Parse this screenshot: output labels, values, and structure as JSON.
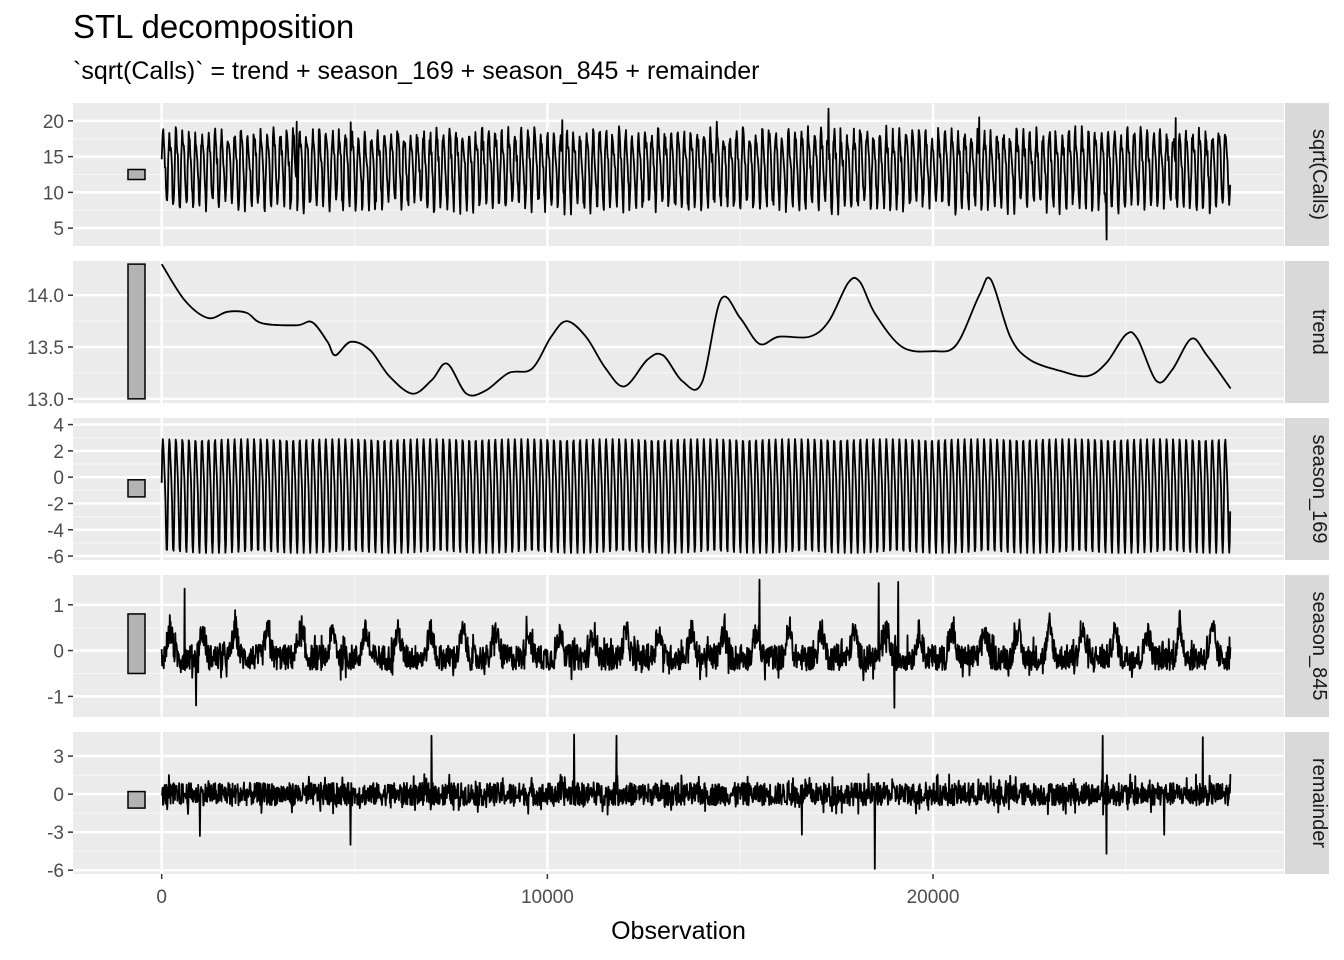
{
  "chart_data": {
    "type": "line",
    "title": "STL decomposition",
    "subtitle": "`sqrt(Calls)` = trend + season_169 + season_845 + remainder",
    "xlabel": "Observation",
    "xlim": [
      -2300,
      29100
    ],
    "x_range": [
      0,
      27716
    ],
    "x_ticks": [
      0,
      10000,
      20000
    ],
    "x_tick_labels": [
      "0",
      "10000",
      "20000"
    ],
    "x_minor_ticks": [
      5000,
      15000,
      25000
    ],
    "grid": true,
    "panels": [
      {
        "name": "sqrt(Calls)",
        "ylim": [
          2.5,
          22.5
        ],
        "y_ticks": [
          5,
          10,
          15,
          20
        ],
        "y_tick_labels": [
          "5",
          "10",
          "15",
          "20"
        ],
        "scale_bar": [
          11.8,
          13.2
        ],
        "kind": "periodic",
        "series": {
          "period": 169,
          "center": 13.6,
          "amplitude": 5.6,
          "noise": 1.2,
          "spikes": [
            {
              "x": 3500,
              "y": 19.9
            },
            {
              "x": 4900,
              "y": 19.8
            },
            {
              "x": 10400,
              "y": 20.1
            },
            {
              "x": 14400,
              "y": 19.9
            },
            {
              "x": 17300,
              "y": 21.7
            },
            {
              "x": 21200,
              "y": 20.5
            },
            {
              "x": 24500,
              "y": 3.4
            },
            {
              "x": 26300,
              "y": 20.4
            }
          ]
        }
      },
      {
        "name": "trend",
        "ylim": [
          12.96,
          14.33
        ],
        "y_ticks": [
          13.0,
          13.5,
          14.0
        ],
        "y_tick_labels": [
          "13.0",
          "13.5",
          "14.0"
        ],
        "scale_bar": [
          13.0,
          14.3
        ],
        "kind": "smooth",
        "series": {
          "x": [
            0,
            600,
            1200,
            1700,
            2200,
            2600,
            3500,
            3900,
            4300,
            4500,
            4900,
            5400,
            5900,
            6500,
            7000,
            7400,
            7900,
            8400,
            9000,
            9600,
            10100,
            10500,
            11000,
            11500,
            12000,
            12600,
            13000,
            13500,
            14000,
            14500,
            15000,
            15500,
            16000,
            16800,
            17300,
            17800,
            18100,
            18500,
            19200,
            20000,
            20600,
            21200,
            21500,
            22000,
            22500,
            23300,
            24000,
            24500,
            25000,
            25300,
            25800,
            26200,
            26700,
            27100,
            27716
          ],
          "y": [
            14.3,
            13.95,
            13.78,
            13.84,
            13.83,
            13.73,
            13.71,
            13.74,
            13.55,
            13.42,
            13.55,
            13.47,
            13.22,
            13.05,
            13.18,
            13.34,
            13.05,
            13.08,
            13.25,
            13.29,
            13.6,
            13.75,
            13.6,
            13.3,
            13.12,
            13.38,
            13.42,
            13.17,
            13.15,
            13.96,
            13.78,
            13.53,
            13.6,
            13.6,
            13.75,
            14.12,
            14.13,
            13.82,
            13.5,
            13.46,
            13.52,
            14.0,
            14.15,
            13.6,
            13.38,
            13.27,
            13.22,
            13.35,
            13.62,
            13.58,
            13.17,
            13.28,
            13.58,
            13.42,
            13.1
          ]
        }
      },
      {
        "name": "season_169",
        "ylim": [
          -6.3,
          4.5
        ],
        "y_ticks": [
          -6,
          -4,
          -2,
          0,
          2,
          4
        ],
        "y_tick_labels": [
          "-6",
          "-4",
          "-2",
          "0",
          "2",
          "4"
        ],
        "scale_bar": [
          -1.5,
          -0.2
        ],
        "kind": "periodic",
        "series": {
          "period": 169,
          "center": -1.0,
          "amplitude": 4.8,
          "noise": 0.0,
          "spikes": []
        }
      },
      {
        "name": "season_845",
        "ylim": [
          -1.45,
          1.65
        ],
        "y_ticks": [
          -1,
          0,
          1
        ],
        "y_tick_labels": [
          "-1",
          "0",
          "1"
        ],
        "scale_bar": [
          -0.5,
          0.8
        ],
        "kind": "noise",
        "series": {
          "period": 845,
          "center": 0.0,
          "amplitude": 0.55,
          "noise": 0.28,
          "spikes": [
            {
              "x": 600,
              "y": 1.35
            },
            {
              "x": 900,
              "y": -1.2
            },
            {
              "x": 18600,
              "y": 1.47
            },
            {
              "x": 19100,
              "y": 1.5
            },
            {
              "x": 19000,
              "y": -1.25
            },
            {
              "x": 15500,
              "y": 1.55
            }
          ]
        }
      },
      {
        "name": "remainder",
        "ylim": [
          -6.3,
          4.9
        ],
        "y_ticks": [
          -6,
          -3,
          0,
          3
        ],
        "y_tick_labels": [
          "-6",
          "-3",
          "0",
          "3"
        ],
        "scale_bar": [
          -1.1,
          0.2
        ],
        "kind": "noise",
        "series": {
          "period": 0,
          "center": 0.0,
          "amplitude": 0.0,
          "noise": 0.9,
          "spikes": [
            {
              "x": 7000,
              "y": 4.6
            },
            {
              "x": 10700,
              "y": 4.7
            },
            {
              "x": 11800,
              "y": 4.6
            },
            {
              "x": 4900,
              "y": -4.0
            },
            {
              "x": 18500,
              "y": -5.9
            },
            {
              "x": 24500,
              "y": -4.7
            },
            {
              "x": 24400,
              "y": 4.6
            },
            {
              "x": 27000,
              "y": 4.5
            },
            {
              "x": 16600,
              "y": -3.2
            },
            {
              "x": 26000,
              "y": -3.2
            },
            {
              "x": 1000,
              "y": -3.3
            }
          ]
        }
      }
    ]
  }
}
